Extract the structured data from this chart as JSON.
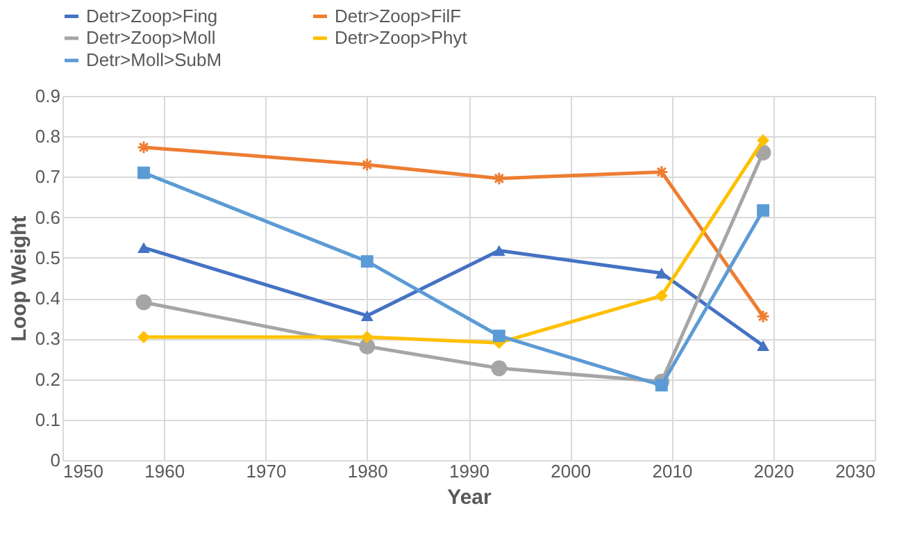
{
  "chart_data": {
    "type": "line",
    "xlabel": "Year",
    "ylabel": "Loop Weight",
    "x": [
      1958,
      1980,
      1993,
      2009,
      2019
    ],
    "xlim": [
      1950,
      2030
    ],
    "xticks": [
      1950,
      1960,
      1970,
      1980,
      1990,
      2000,
      2010,
      2020,
      2030
    ],
    "ylim": [
      0,
      0.9
    ],
    "yticks": [
      0,
      0.1,
      0.2,
      0.3,
      0.4,
      0.5,
      0.6,
      0.7,
      0.8,
      0.9
    ],
    "grid": true,
    "legend": "top",
    "line_style": "solid",
    "series": [
      {
        "name": "Detr>Zoop>Fing",
        "color": "#4472c4",
        "marker": "triangle",
        "values": [
          0.525,
          0.357,
          0.518,
          0.462,
          0.283
        ]
      },
      {
        "name": "Detr>Zoop>FilF",
        "color": "#ed7d31",
        "marker": "cross",
        "values": [
          0.773,
          0.73,
          0.696,
          0.712,
          0.355
        ]
      },
      {
        "name": "Detr>Zoop>Moll",
        "color": "#a5a5a5",
        "marker": "circle",
        "values": [
          0.39,
          0.281,
          0.227,
          0.194,
          0.76
        ]
      },
      {
        "name": "Detr>Zoop>Phyt",
        "color": "#ffc000",
        "marker": "diamond",
        "values": [
          0.304,
          0.304,
          0.29,
          0.406,
          0.79
        ]
      },
      {
        "name": "Detr>Moll>SubM",
        "color": "#5b9bd5",
        "marker": "square",
        "values": [
          0.71,
          0.491,
          0.307,
          0.185,
          0.617
        ]
      }
    ]
  }
}
